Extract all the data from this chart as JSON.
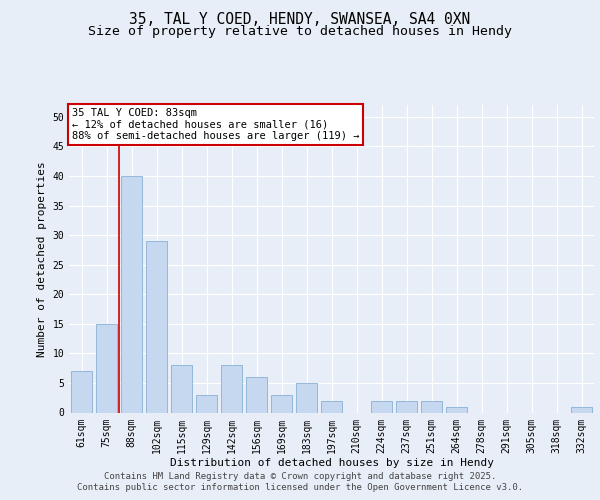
{
  "title_line1": "35, TAL Y COED, HENDY, SWANSEA, SA4 0XN",
  "title_line2": "Size of property relative to detached houses in Hendy",
  "xlabel": "Distribution of detached houses by size in Hendy",
  "ylabel": "Number of detached properties",
  "categories": [
    "61sqm",
    "75sqm",
    "88sqm",
    "102sqm",
    "115sqm",
    "129sqm",
    "142sqm",
    "156sqm",
    "169sqm",
    "183sqm",
    "197sqm",
    "210sqm",
    "224sqm",
    "237sqm",
    "251sqm",
    "264sqm",
    "278sqm",
    "291sqm",
    "305sqm",
    "318sqm",
    "332sqm"
  ],
  "values": [
    7,
    15,
    40,
    29,
    8,
    3,
    8,
    6,
    3,
    5,
    2,
    0,
    2,
    2,
    2,
    1,
    0,
    0,
    0,
    0,
    1
  ],
  "bar_color": "#c5d8ef",
  "bar_edge_color": "#8ab0d4",
  "background_color": "#e8eef7",
  "grid_color": "#ffffff",
  "redline_color": "#cc0000",
  "redline_x": 1.5,
  "annotation_text": "35 TAL Y COED: 83sqm\n← 12% of detached houses are smaller (16)\n88% of semi-detached houses are larger (119) →",
  "annotation_box_facecolor": "#ffffff",
  "annotation_box_edgecolor": "#cc0000",
  "footer_line1": "Contains HM Land Registry data © Crown copyright and database right 2025.",
  "footer_line2": "Contains public sector information licensed under the Open Government Licence v3.0.",
  "ylim": [
    0,
    52
  ],
  "yticks": [
    0,
    5,
    10,
    15,
    20,
    25,
    30,
    35,
    40,
    45,
    50
  ],
  "title_fontsize": 10.5,
  "subtitle_fontsize": 9.5,
  "ylabel_fontsize": 8,
  "xlabel_fontsize": 8,
  "tick_fontsize": 7,
  "footer_fontsize": 6.5,
  "annotation_fontsize": 7.5
}
